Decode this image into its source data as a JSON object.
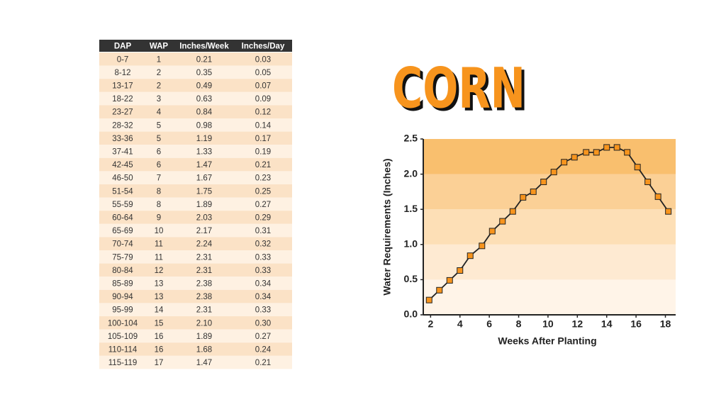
{
  "table": {
    "header": [
      "DAP",
      "WAP",
      "Inches/Week",
      "Inches/Day"
    ],
    "rows": [
      [
        "0-7",
        "1",
        "0.21",
        "0.03"
      ],
      [
        "8-12",
        "2",
        "0.35",
        "0.05"
      ],
      [
        "13-17",
        "2",
        "0.49",
        "0.07"
      ],
      [
        "18-22",
        "3",
        "0.63",
        "0.09"
      ],
      [
        "23-27",
        "4",
        "0.84",
        "0.12"
      ],
      [
        "28-32",
        "5",
        "0.98",
        "0.14"
      ],
      [
        "33-36",
        "5",
        "1.19",
        "0.17"
      ],
      [
        "37-41",
        "6",
        "1.33",
        "0.19"
      ],
      [
        "42-45",
        "6",
        "1.47",
        "0.21"
      ],
      [
        "46-50",
        "7",
        "1.67",
        "0.23"
      ],
      [
        "51-54",
        "8",
        "1.75",
        "0.25"
      ],
      [
        "55-59",
        "8",
        "1.89",
        "0.27"
      ],
      [
        "60-64",
        "9",
        "2.03",
        "0.29"
      ],
      [
        "65-69",
        "10",
        "2.17",
        "0.31"
      ],
      [
        "70-74",
        "11",
        "2.24",
        "0.32"
      ],
      [
        "75-79",
        "11",
        "2.31",
        "0.33"
      ],
      [
        "80-84",
        "12",
        "2.31",
        "0.33"
      ],
      [
        "85-89",
        "13",
        "2.38",
        "0.34"
      ],
      [
        "90-94",
        "13",
        "2.38",
        "0.34"
      ],
      [
        "95-99",
        "14",
        "2.31",
        "0.33"
      ],
      [
        "100-104",
        "15",
        "2.10",
        "0.30"
      ],
      [
        "105-109",
        "16",
        "1.89",
        "0.27"
      ],
      [
        "110-114",
        "16",
        "1.68",
        "0.24"
      ],
      [
        "115-119",
        "17",
        "1.47",
        "0.21"
      ]
    ]
  },
  "chart_data": {
    "type": "line",
    "title": "CORN",
    "x_label": "Weeks After Planting",
    "y_label": "Water Requirements (Inches)",
    "x": [
      1.9,
      2.6,
      3.3,
      4.0,
      4.7,
      5.5,
      6.2,
      6.9,
      7.6,
      8.3,
      9.0,
      9.7,
      10.4,
      11.1,
      11.8,
      12.6,
      13.3,
      14.0,
      14.7,
      15.4,
      16.1,
      16.8,
      17.5,
      18.2
    ],
    "series": [
      {
        "name": null,
        "color": "#f7941d",
        "values": [
          0.21,
          0.35,
          0.49,
          0.63,
          0.84,
          0.98,
          1.19,
          1.33,
          1.47,
          1.67,
          1.75,
          1.89,
          2.03,
          2.17,
          2.24,
          2.31,
          2.31,
          2.38,
          2.38,
          2.31,
          2.1,
          1.89,
          1.68,
          1.47
        ]
      }
    ],
    "xlim": [
      1.5,
      18.7
    ],
    "xticks": [
      2,
      4,
      6,
      8,
      10,
      12,
      14,
      16,
      18
    ],
    "ylim": [
      0,
      2.5
    ],
    "yticks": [
      {
        "value": 0,
        "label": "0.0"
      },
      0.5,
      {
        "value": 1,
        "label": "1.0"
      },
      1.5,
      {
        "value": 2,
        "label": "2.0"
      },
      2.5
    ],
    "band_colors": [
      "#fff4e8",
      "#feead2",
      "#fddfb6",
      "#fbd096",
      "#f9bf6e"
    ]
  }
}
